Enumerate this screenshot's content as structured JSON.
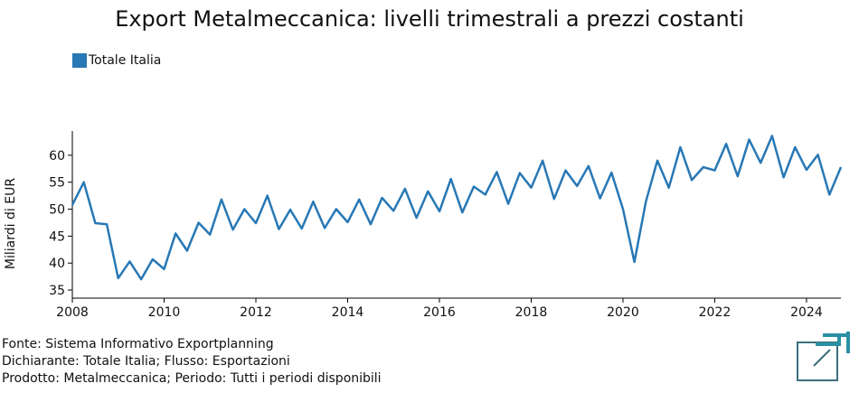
{
  "chart_data": {
    "type": "line",
    "title": "Export Metalmeccanica: livelli trimestrali a prezzi costanti",
    "xlabel": "",
    "ylabel": "Miliardi di EUR",
    "xlim": [
      2008,
      2024.75
    ],
    "ylim": [
      33.5,
      64.5
    ],
    "yticks": [
      35,
      40,
      45,
      50,
      55,
      60
    ],
    "xticks": [
      2008,
      2010,
      2012,
      2014,
      2016,
      2018,
      2020,
      2022,
      2024
    ],
    "legend_position": "top-left",
    "grid": false,
    "series": [
      {
        "name": "Totale Italia",
        "color": "#2878b5",
        "x": [
          2008.0,
          2008.25,
          2008.5,
          2008.75,
          2009.0,
          2009.25,
          2009.5,
          2009.75,
          2010.0,
          2010.25,
          2010.5,
          2010.75,
          2011.0,
          2011.25,
          2011.5,
          2011.75,
          2012.0,
          2012.25,
          2012.5,
          2012.75,
          2013.0,
          2013.25,
          2013.5,
          2013.75,
          2014.0,
          2014.25,
          2014.5,
          2014.75,
          2015.0,
          2015.25,
          2015.5,
          2015.75,
          2016.0,
          2016.25,
          2016.5,
          2016.75,
          2017.0,
          2017.25,
          2017.5,
          2017.75,
          2018.0,
          2018.25,
          2018.5,
          2018.75,
          2019.0,
          2019.25,
          2019.5,
          2019.75,
          2020.0,
          2020.25,
          2020.5,
          2020.75,
          2021.0,
          2021.25,
          2021.5,
          2021.75,
          2022.0,
          2022.25,
          2022.5,
          2022.75,
          2023.0,
          2023.25,
          2023.5,
          2023.75,
          2024.0,
          2024.25,
          2024.5,
          2024.75
        ],
        "values": [
          50.8,
          55.0,
          47.4,
          47.2,
          37.2,
          40.3,
          37.0,
          40.7,
          38.9,
          45.5,
          42.3,
          47.5,
          45.3,
          51.8,
          46.2,
          50.0,
          47.4,
          52.5,
          46.3,
          49.9,
          46.4,
          51.4,
          46.5,
          50.0,
          47.6,
          51.8,
          47.2,
          52.1,
          49.7,
          53.8,
          48.4,
          53.3,
          49.6,
          55.6,
          49.4,
          54.2,
          52.7,
          56.9,
          51.0,
          56.7,
          54.0,
          59.0,
          51.9,
          57.2,
          54.3,
          58.0,
          52.0,
          56.8,
          50.0,
          40.2,
          51.4,
          59.0,
          54.0,
          61.5,
          55.4,
          57.8,
          57.2,
          62.1,
          56.1,
          62.9,
          58.6,
          63.6,
          55.9,
          61.5,
          57.3,
          60.1,
          52.7,
          57.8
        ]
      }
    ]
  },
  "source": {
    "line1": "Fonte: Sistema Informativo Exportplanning",
    "line2": "Dichiarante: Totale Italia; Flusso: Esportazioni",
    "line3": "Prodotto: Metalmeccanica; Periodo: Tutti i periodi disponibili"
  },
  "logo": {
    "icon": "exportplanning-logo-icon",
    "color": "#2a7f8f",
    "frame_color": "#3d6f7d"
  }
}
